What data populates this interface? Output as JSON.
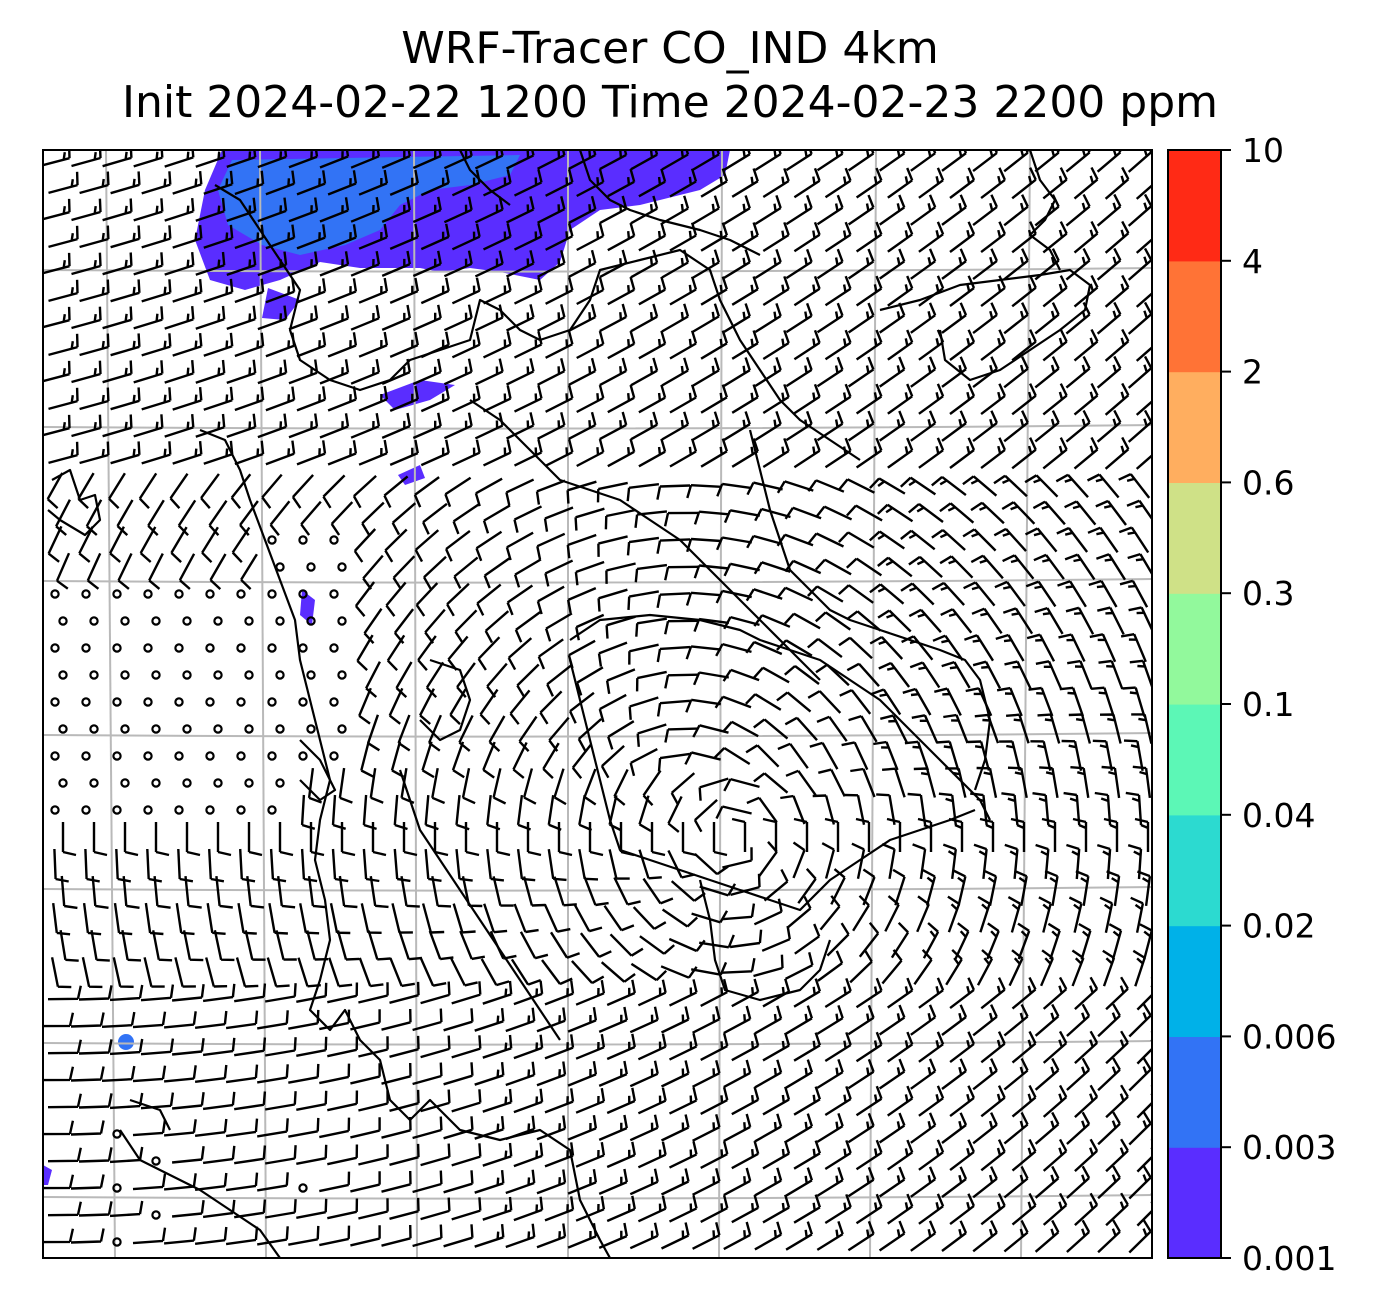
{
  "figure": {
    "title": "WRF-Tracer CO_IND 4km",
    "subtitle": "Init 2024-02-22 1200 Time 2024-02-23 2200 ppm"
  },
  "colorbar": {
    "levels": [
      "0.001",
      "0.003",
      "0.006",
      "0.02",
      "0.04",
      "0.1",
      "0.3",
      "0.6",
      "2",
      "4",
      "10"
    ],
    "colors": [
      "#5a2dff",
      "#3273f5",
      "#00b1e8",
      "#2cdad0",
      "#5cf7b6",
      "#92f99c",
      "#cfe187",
      "#ffae5f",
      "#ff7336",
      "#ff2a15"
    ]
  },
  "map": {
    "overlay": "wind barbs",
    "coastlines": true,
    "gridlines": true,
    "plume_color": "#5a2dff",
    "plume_core_color": "#3273f5"
  }
}
